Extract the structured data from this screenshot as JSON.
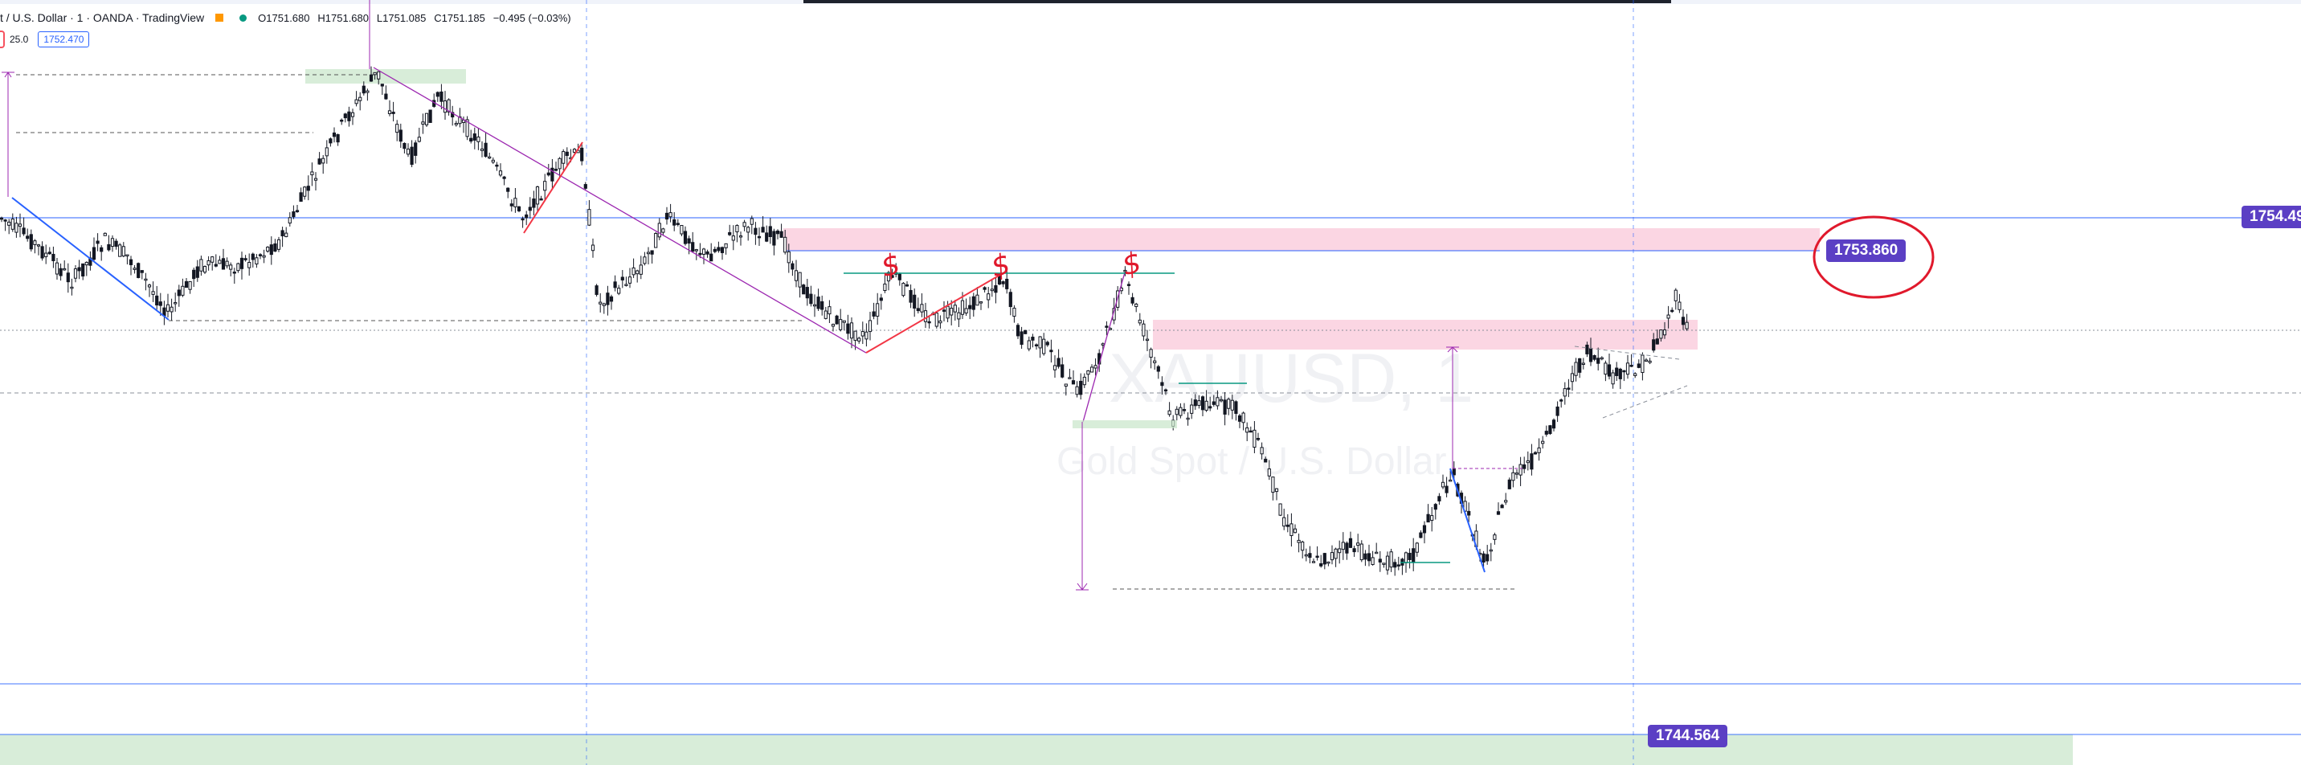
{
  "header": {
    "title": "t / U.S. Dollar · 1 · OANDA · TradingView",
    "ohlc": {
      "open": "O1751.680",
      "high": "H1751.680",
      "low": "L1751.085",
      "close": "C1751.185",
      "change": "−0.495 (−0.03%)"
    },
    "colors": {
      "source_badge": "#ff9800",
      "status_dot": "#089981"
    }
  },
  "indicator": {
    "value": "25.0",
    "price_box": "1752.470"
  },
  "price_labels": {
    "right_axis": "1754.49",
    "annotated": "1753.860",
    "bottom": "1744.564"
  },
  "watermark": {
    "symbol": "XAUUSD, 1",
    "description": "Gold Spot / U.S. Dollar"
  },
  "annotations": {
    "dollar_signs": [
      "$",
      "$",
      "$"
    ]
  },
  "colors": {
    "label_bg": "#5b3fc4",
    "supply_zone": "#f8bbd0",
    "demand_zone": "#c8e6c9",
    "trendline_blue": "#2962ff",
    "trendline_purple": "#9c27b0",
    "trendline_red": "#f23645",
    "horizontal_green": "#089981",
    "candle": "#131722"
  }
}
